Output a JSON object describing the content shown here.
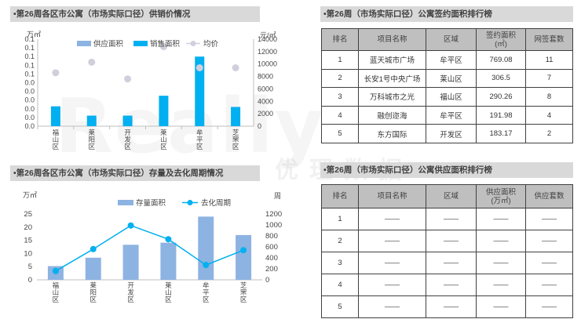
{
  "panels": {
    "supply_title": "•第26周各区市公寓（市场实际口径）供销价情况",
    "stock_title": "•第26周各区市公寓（市场实际口径）存量及去化周期情况",
    "signed_title": "•第26周（市场实际口径）公寓签约面积排行榜",
    "supply_rank_title": "•第26周（市场实际口径）公寓供应面积排行榜"
  },
  "watermark": {
    "main": "Really",
    "sub": "优理数据"
  },
  "chart_data": [
    {
      "id": "supply_sales_price",
      "type": "bar",
      "title": "•第26周各区市公寓（市场实际口径）供销价情况",
      "categories": [
        "福山区",
        "莱阳区",
        "开发区",
        "莱山区",
        "牟平区",
        "芝罘区"
      ],
      "y_left_label": "万㎡",
      "y_right_label": "元/㎡",
      "y_left_ticks": [
        "0.0",
        "0.0",
        "0.0",
        "0.0",
        "0.0",
        "0.0",
        "0.1",
        "0.1",
        "0.1",
        "0.1",
        "0.1"
      ],
      "y_right_ticks": [
        "0",
        "2000",
        "4000",
        "6000",
        "8000",
        "10000",
        "12000",
        "14000"
      ],
      "y_right_range": [
        0,
        14000
      ],
      "legend": [
        "供应面积",
        "销售面积",
        "均价"
      ],
      "series": [
        {
          "name": "供应面积",
          "kind": "bar",
          "values": [
            0,
            0,
            0,
            0,
            0,
            0
          ],
          "color": "#8db3e2"
        },
        {
          "name": "销售面积",
          "kind": "bar",
          "values": [
            3200,
            1700,
            1700,
            4900,
            11200,
            3100
          ],
          "color": "#00b0f0"
        },
        {
          "name": "均价",
          "kind": "point",
          "values": [
            8600,
            10300,
            7600,
            12800,
            9400,
            9400
          ],
          "color": "#d0d0dc"
        }
      ]
    },
    {
      "id": "stock_cycle",
      "type": "bar",
      "title": "•第26周各区市公寓（市场实际口径）存量及去化周期情况",
      "categories": [
        "福山区",
        "莱阳区",
        "开发区",
        "莱山区",
        "牟平区",
        "芝罘区"
      ],
      "y_left_label": "万㎡",
      "y_right_label": "周",
      "y_left_ticks": [
        "0",
        "5",
        "10",
        "15",
        "20",
        "25"
      ],
      "y_right_ticks": [
        "0",
        "200",
        "400",
        "600",
        "800",
        "1000",
        "1200"
      ],
      "y_left_range": [
        0,
        25
      ],
      "y_right_range": [
        0,
        1200
      ],
      "legend": [
        "存量面积",
        "去化周期"
      ],
      "series": [
        {
          "name": "存量面积",
          "kind": "bar",
          "values": [
            5.2,
            8.4,
            13.3,
            14.1,
            24,
            17
          ],
          "color": "#8db3e2"
        },
        {
          "name": "去化周期",
          "kind": "line",
          "values": [
            160,
            560,
            990,
            740,
            270,
            540
          ],
          "color": "#00b0f0"
        }
      ]
    }
  ],
  "signed_table": {
    "headers": [
      "排名",
      "项目名称",
      "区域",
      "签约面积\n(㎡)",
      "网签套数"
    ],
    "rows": [
      [
        "1",
        "蓝天城市广场",
        "牟平区",
        "769.08",
        "11"
      ],
      [
        "2",
        "长安1号中央广场",
        "莱山区",
        "306.5",
        "7"
      ],
      [
        "3",
        "万科城市之光",
        "福山区",
        "290.26",
        "8"
      ],
      [
        "4",
        "融创迩海",
        "牟平区",
        "191.98",
        "4"
      ],
      [
        "5",
        "东方国际",
        "开发区",
        "183.17",
        "2"
      ]
    ]
  },
  "supply_table": {
    "headers": [
      "排名",
      "项目名称",
      "区域",
      "供应面积\n(万㎡)",
      "供应套数"
    ],
    "rows": [
      [
        "1",
        "——",
        "——",
        "——",
        "——"
      ],
      [
        "2",
        "——",
        "——",
        "——",
        "——"
      ],
      [
        "3",
        "——",
        "——",
        "——",
        "——"
      ],
      [
        "4",
        "——",
        "——",
        "——",
        "——"
      ],
      [
        "5",
        "——",
        "——",
        "——",
        "——"
      ]
    ]
  }
}
